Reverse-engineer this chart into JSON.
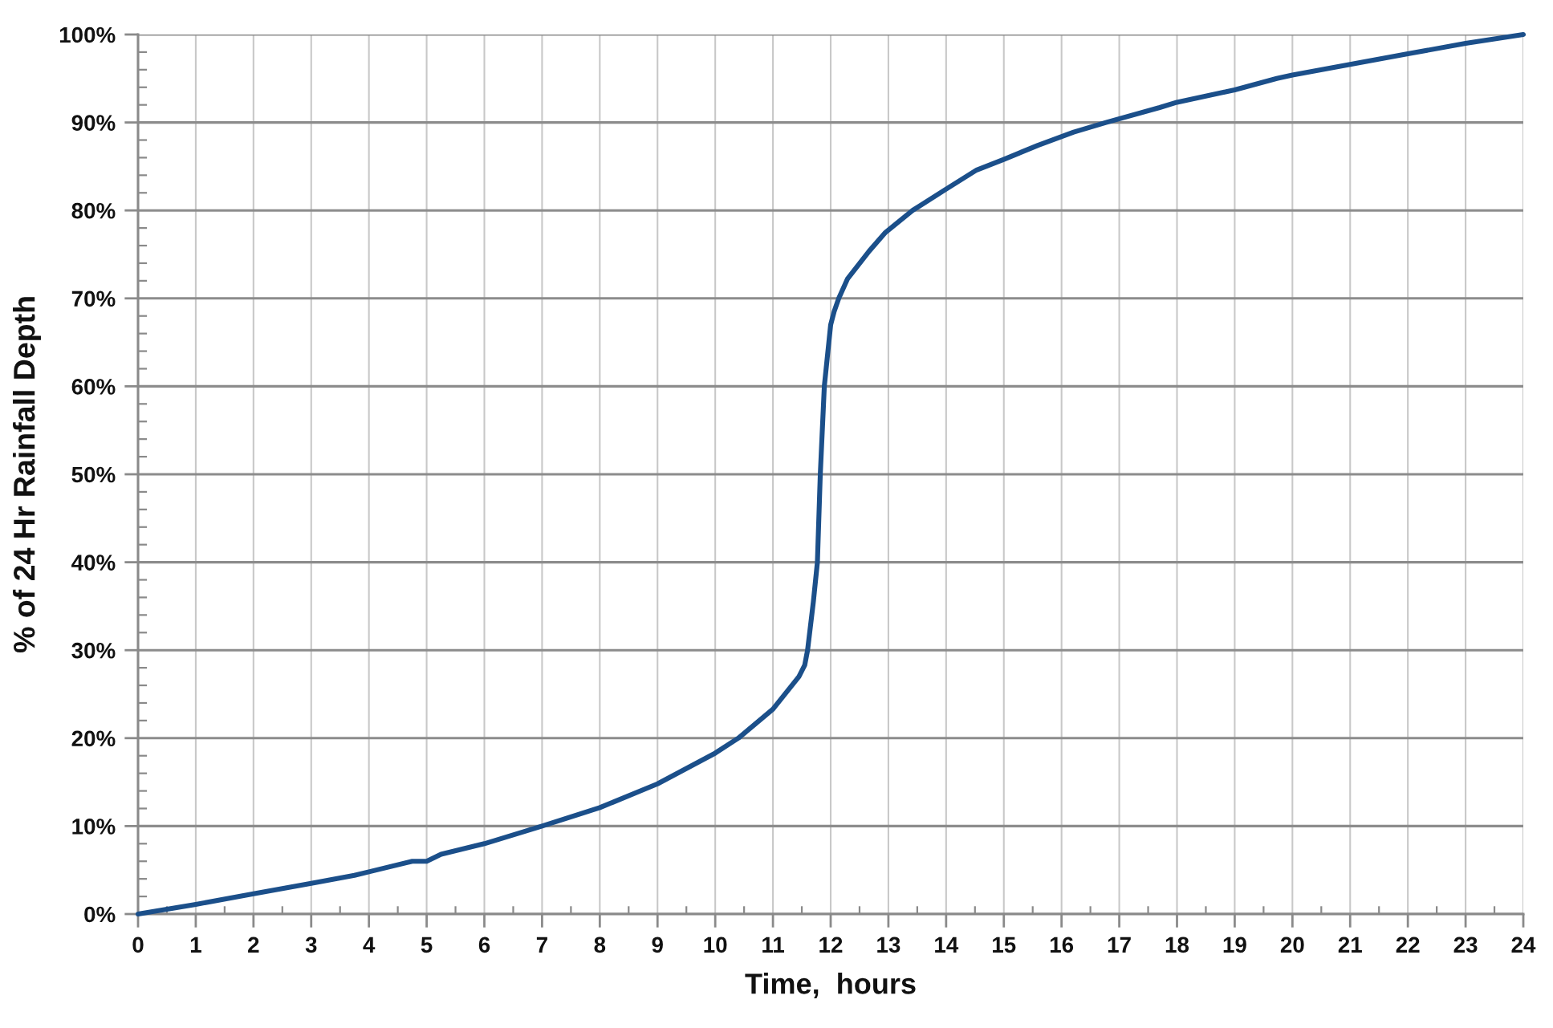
{
  "chart_data": {
    "type": "line",
    "xlabel": "Time,  hours",
    "ylabel": "% of 24 Hr Rainfall Depth",
    "x": [
      0,
      1,
      2,
      3,
      3.75,
      4,
      4.75,
      5,
      5.25,
      6,
      7,
      8,
      9,
      10,
      10.4,
      11,
      11.45,
      11.55,
      11.6,
      11.7,
      11.77,
      11.82,
      11.89,
      11.94,
      12.0,
      12.06,
      12.14,
      12.29,
      12.67,
      12.95,
      13.42,
      13.97,
      14.53,
      15,
      15.59,
      16.21,
      16.77,
      17.7,
      18,
      19,
      19.73,
      20,
      21,
      22,
      23,
      24
    ],
    "series": [
      {
        "color": "#1b4f8a",
        "values": [
          0,
          1.1,
          2.3,
          3.5,
          4.4,
          4.8,
          6.0,
          6.0,
          6.8,
          8.0,
          10.0,
          12.1,
          14.8,
          18.3,
          20.0,
          23.3,
          27.0,
          28.3,
          30.0,
          35.5,
          40.0,
          50.0,
          60.0,
          63.2,
          67.0,
          68.5,
          70.0,
          72.2,
          75.4,
          77.5,
          80.0,
          82.3,
          84.6,
          85.8,
          87.4,
          88.9,
          90.0,
          91.7,
          92.3,
          93.7,
          95.0,
          95.4,
          96.6,
          97.8,
          99.0,
          100
        ]
      }
    ],
    "xlim": [
      0,
      24
    ],
    "ylim": [
      0,
      100
    ],
    "xticks": [
      0,
      {
        "value": 0.5,
        "label": null
      },
      1,
      {
        "value": 1.5,
        "label": null
      },
      2,
      {
        "value": 2.5,
        "label": null
      },
      3,
      {
        "value": 3.5,
        "label": null
      },
      4,
      {
        "value": 4.5,
        "label": null
      },
      5,
      {
        "value": 5.5,
        "label": null
      },
      6,
      {
        "value": 6.5,
        "label": null
      },
      7,
      {
        "value": 7.5,
        "label": null
      },
      8,
      {
        "value": 8.5,
        "label": null
      },
      9,
      {
        "value": 9.5,
        "label": null
      },
      10,
      {
        "value": 10.5,
        "label": null
      },
      11,
      {
        "value": 11.5,
        "label": null
      },
      12,
      {
        "value": 12.5,
        "label": null
      },
      13,
      {
        "value": 13.5,
        "label": null
      },
      14,
      {
        "value": 14.5,
        "label": null
      },
      15,
      {
        "value": 15.5,
        "label": null
      },
      16,
      {
        "value": 16.5,
        "label": null
      },
      17,
      {
        "value": 17.5,
        "label": null
      },
      18,
      {
        "value": 18.5,
        "label": null
      },
      19,
      {
        "value": 19.5,
        "label": null
      },
      20,
      {
        "value": 20.5,
        "label": null
      },
      21,
      {
        "value": 21.5,
        "label": null
      },
      22,
      {
        "value": 22.5,
        "label": null
      },
      23,
      {
        "value": 23.5,
        "label": null
      },
      24
    ],
    "yticks": [
      {
        "value": 0,
        "label": "0%"
      },
      {
        "value": 2,
        "label": null
      },
      {
        "value": 4,
        "label": null
      },
      {
        "value": 6,
        "label": null
      },
      {
        "value": 8,
        "label": null
      },
      {
        "value": 10,
        "label": "10%"
      },
      {
        "value": 12,
        "label": null
      },
      {
        "value": 14,
        "label": null
      },
      {
        "value": 16,
        "label": null
      },
      {
        "value": 18,
        "label": null
      },
      {
        "value": 20,
        "label": "20%"
      },
      {
        "value": 22,
        "label": null
      },
      {
        "value": 24,
        "label": null
      },
      {
        "value": 26,
        "label": null
      },
      {
        "value": 28,
        "label": null
      },
      {
        "value": 30,
        "label": "30%"
      },
      {
        "value": 32,
        "label": null
      },
      {
        "value": 34,
        "label": null
      },
      {
        "value": 36,
        "label": null
      },
      {
        "value": 38,
        "label": null
      },
      {
        "value": 40,
        "label": "40%"
      },
      {
        "value": 42,
        "label": null
      },
      {
        "value": 44,
        "label": null
      },
      {
        "value": 46,
        "label": null
      },
      {
        "value": 48,
        "label": null
      },
      {
        "value": 50,
        "label": "50%"
      },
      {
        "value": 52,
        "label": null
      },
      {
        "value": 54,
        "label": null
      },
      {
        "value": 56,
        "label": null
      },
      {
        "value": 58,
        "label": null
      },
      {
        "value": 60,
        "label": "60%"
      },
      {
        "value": 62,
        "label": null
      },
      {
        "value": 64,
        "label": null
      },
      {
        "value": 66,
        "label": null
      },
      {
        "value": 68,
        "label": null
      },
      {
        "value": 70,
        "label": "70%"
      },
      {
        "value": 72,
        "label": null
      },
      {
        "value": 74,
        "label": null
      },
      {
        "value": 76,
        "label": null
      },
      {
        "value": 78,
        "label": null
      },
      {
        "value": 80,
        "label": "80%"
      },
      {
        "value": 82,
        "label": null
      },
      {
        "value": 84,
        "label": null
      },
      {
        "value": 86,
        "label": null
      },
      {
        "value": 88,
        "label": null
      },
      {
        "value": 90,
        "label": "90%"
      },
      {
        "value": 92,
        "label": null
      },
      {
        "value": 94,
        "label": null
      },
      {
        "value": 96,
        "label": null
      },
      {
        "value": 98,
        "label": null
      },
      {
        "value": 100,
        "label": "100%"
      }
    ],
    "grid": true,
    "marker": "none",
    "line_style": "solid"
  }
}
